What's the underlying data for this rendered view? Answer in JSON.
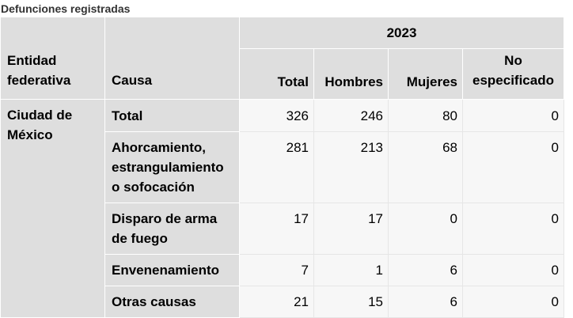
{
  "caption": "Defunciones registradas",
  "header": {
    "year": "2023",
    "entity_label": "Entidad federativa",
    "cause_label": "Causa",
    "columns": [
      "Total",
      "Hombres",
      "Mujeres",
      "No especificado"
    ]
  },
  "entity": "Ciudad de México",
  "rows": [
    {
      "cause": "Total",
      "total": "326",
      "hombres": "246",
      "mujeres": "80",
      "no_especificado": "0"
    },
    {
      "cause": "Ahorcamiento, estrangulamiento o sofocación",
      "total": "281",
      "hombres": "213",
      "mujeres": "68",
      "no_especificado": "0"
    },
    {
      "cause": "Disparo de arma de fuego",
      "total": "17",
      "hombres": "17",
      "mujeres": "0",
      "no_especificado": "0"
    },
    {
      "cause": "Envenenamiento",
      "total": "7",
      "hombres": "1",
      "mujeres": "6",
      "no_especificado": "0"
    },
    {
      "cause": "Otras causas",
      "total": "21",
      "hombres": "15",
      "mujeres": "6",
      "no_especificado": "0"
    }
  ]
}
